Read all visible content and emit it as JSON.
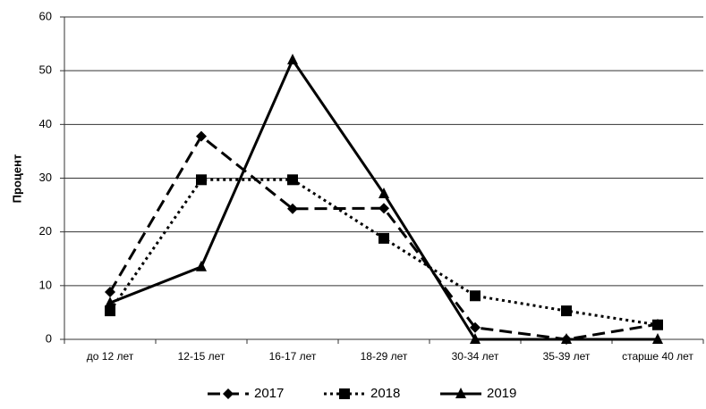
{
  "chart_data": {
    "type": "line",
    "y_label": "Процент",
    "categories": [
      "до 12 лет",
      "12-15 лет",
      "16-17 лет",
      "18-29 лет",
      "30-34 лет",
      "35-39 лет",
      "старше 40 лет"
    ],
    "series": [
      {
        "name": "2017",
        "color": "#000000",
        "dash": "dashed",
        "marker": "diamond",
        "values": [
          8.8,
          37.8,
          24.3,
          24.4,
          2.2,
          0,
          2.8
        ]
      },
      {
        "name": "2018",
        "color": "#000000",
        "dash": "dotted",
        "marker": "square",
        "values": [
          5.3,
          29.7,
          29.7,
          18.8,
          8.1,
          5.3,
          2.7
        ]
      },
      {
        "name": "2019",
        "color": "#000000",
        "dash": "solid",
        "marker": "triangle",
        "values": [
          6.8,
          13.5,
          52,
          27.1,
          0,
          0,
          0
        ]
      }
    ],
    "ylim": [
      0,
      60
    ],
    "yticks": [
      0,
      10,
      20,
      30,
      40,
      50,
      60
    ],
    "grid": true,
    "legend": "bottom"
  }
}
